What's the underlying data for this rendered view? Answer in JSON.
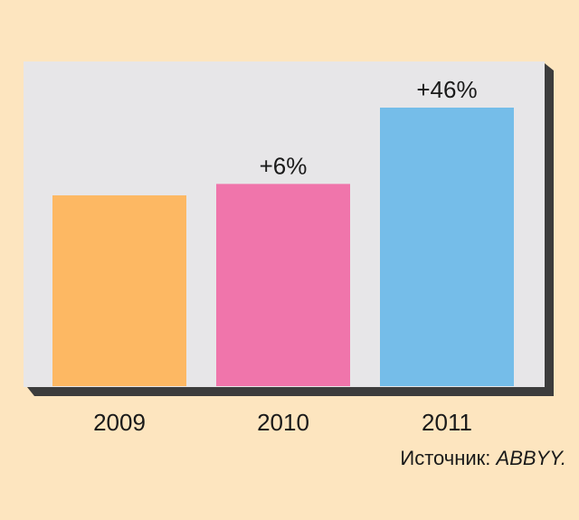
{
  "chart_data": {
    "type": "bar",
    "categories": [
      "2009",
      "2010",
      "2011"
    ],
    "values": [
      100,
      106,
      146
    ],
    "value_labels": [
      "",
      "+6%",
      "+46%"
    ],
    "colors": [
      "#fdb863",
      "#f075ab",
      "#75bde9"
    ],
    "title": "",
    "xlabel": "",
    "ylabel": "",
    "ylim": [
      0,
      146
    ],
    "grid": false,
    "legend": "none"
  },
  "source": {
    "prefix": "Источник: ",
    "brand": "ABBYY."
  },
  "style": {
    "page_background": "#fde5bf",
    "plot_background": "#e7e6e8",
    "plot_shadow": "#3c3c3c"
  }
}
